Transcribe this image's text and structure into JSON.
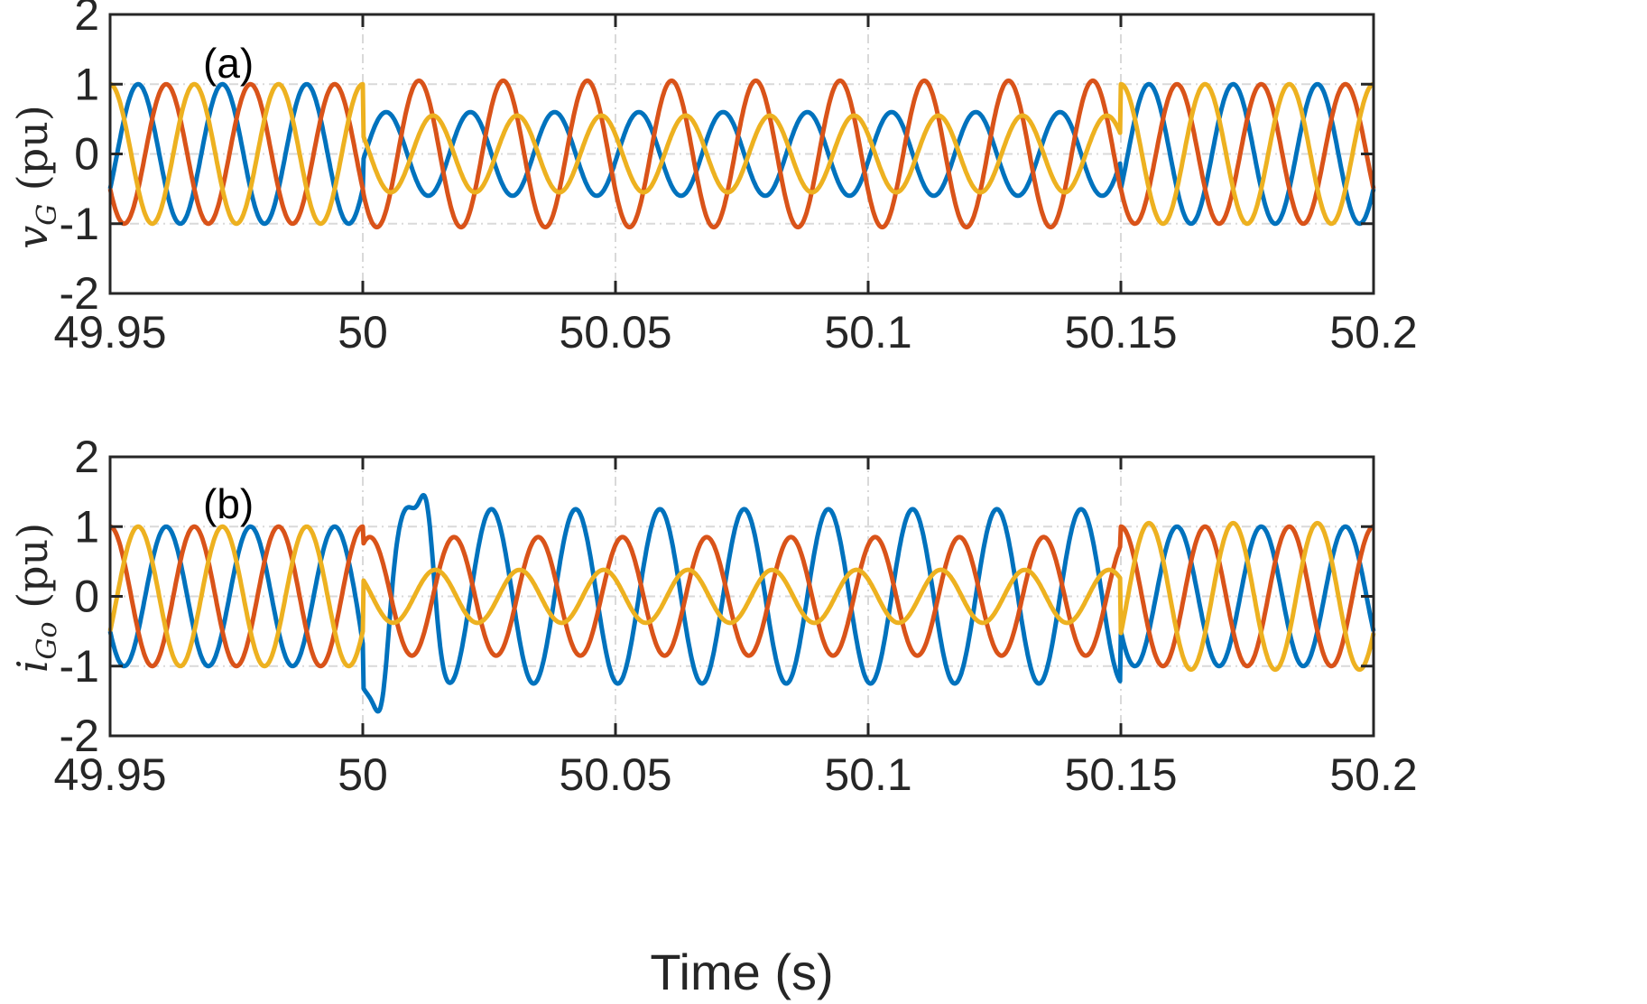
{
  "xlabel": "Time (s)",
  "colors": {
    "phase_a": "#0072BD",
    "phase_b": "#D95319",
    "phase_c": "#EDB120",
    "axis": "#262626",
    "grid": "#D9D9D9"
  },
  "chart_data": [
    {
      "type": "line",
      "panel_label": "(a)",
      "ylabel": {
        "var": "v",
        "sub": "G",
        "unit": " (pu)"
      },
      "xlim": [
        49.95,
        50.2
      ],
      "ylim": [
        -2,
        2
      ],
      "xticks": [
        "49.95",
        "50",
        "50.05",
        "50.1",
        "50.15",
        "50.2"
      ],
      "yticks": [
        "2",
        "1",
        "0",
        "-1",
        "-2"
      ],
      "xtick_values": [
        49.95,
        50,
        50.05,
        50.1,
        50.15,
        50.2
      ],
      "ytick_values": [
        2,
        1,
        0,
        -1,
        -2
      ],
      "grid": true,
      "fundamental_hz": 60,
      "segments": [
        {
          "t_start": 49.95,
          "t_end": 50.0,
          "amplitude": [
            1.0,
            1.0,
            1.0
          ],
          "phase_deg": [
            -30,
            -150,
            90
          ]
        },
        {
          "t_start": 50.0,
          "t_end": 50.15,
          "amplitude": [
            0.6,
            1.05,
            0.55
          ],
          "phase_deg": [
            -10,
            -150,
            150
          ]
        },
        {
          "t_start": 50.15,
          "t_end": 50.2,
          "amplitude": [
            1.0,
            1.0,
            1.0
          ],
          "phase_deg": [
            -30,
            -150,
            90
          ]
        }
      ]
    },
    {
      "type": "line",
      "panel_label": "(b)",
      "ylabel": {
        "var": "i",
        "sub": "Go",
        "unit": " (pu)"
      },
      "xlim": [
        49.95,
        50.2
      ],
      "ylim": [
        -2,
        2
      ],
      "xticks": [
        "49.95",
        "50",
        "50.05",
        "50.1",
        "50.15",
        "50.2"
      ],
      "yticks": [
        "2",
        "1",
        "0",
        "-1",
        "-2"
      ],
      "xtick_values": [
        49.95,
        50,
        50.05,
        50.1,
        50.15,
        50.2
      ],
      "ytick_values": [
        2,
        1,
        0,
        -1,
        -2
      ],
      "grid": true,
      "fundamental_hz": 60,
      "segments": [
        {
          "t_start": 49.95,
          "t_end": 50.0,
          "amplitude": [
            1.0,
            1.0,
            1.0
          ],
          "phase_deg": [
            -150,
            90,
            -30
          ]
        },
        {
          "t_start": 50.0,
          "t_end": 50.15,
          "amplitude": [
            1.25,
            0.85,
            0.38
          ],
          "phase_deg": [
            -100,
            60,
            140
          ]
        },
        {
          "t_start": 50.15,
          "t_end": 50.2,
          "amplitude": [
            1.0,
            1.0,
            1.05
          ],
          "phase_deg": [
            -150,
            90,
            -30
          ]
        }
      ],
      "transients": [
        {
          "series": 0,
          "t": 50.003,
          "peak": -1.65
        },
        {
          "series": 0,
          "t": 50.012,
          "peak": 1.45
        }
      ]
    }
  ]
}
